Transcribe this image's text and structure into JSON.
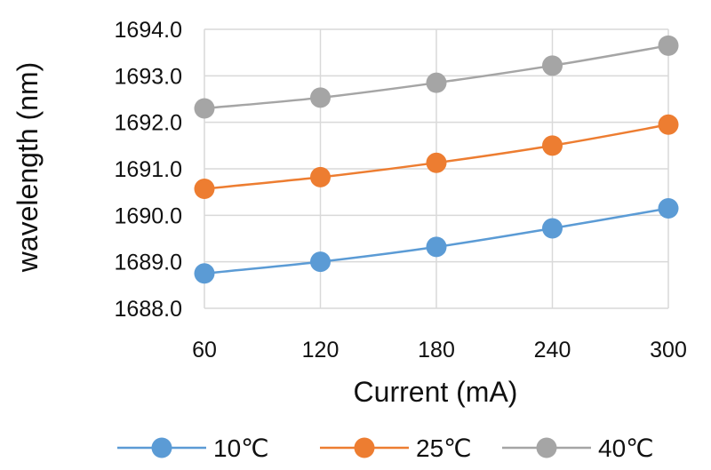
{
  "chart_data": {
    "type": "line",
    "title": "",
    "xlabel": "Current (mA)",
    "ylabel": "wavelength (nm)",
    "x": [
      60,
      120,
      180,
      240,
      300
    ],
    "x_tick_labels": [
      "60",
      "120",
      "180",
      "240",
      "300"
    ],
    "ylim": [
      1688.0,
      1694.0
    ],
    "y_tick_labels": [
      "1688.0",
      "1689.0",
      "1690.0",
      "1691.0",
      "1692.0",
      "1693.0",
      "1694.0"
    ],
    "grid": true,
    "legend_position": "bottom",
    "series": [
      {
        "name": "10℃",
        "color": "#5b9bd5",
        "values": [
          1688.75,
          1689.0,
          1689.32,
          1689.72,
          1690.15
        ]
      },
      {
        "name": "25℃",
        "color": "#ed7d31",
        "values": [
          1690.57,
          1690.82,
          1691.13,
          1691.5,
          1691.95
        ]
      },
      {
        "name": "40℃",
        "color": "#a5a5a5",
        "values": [
          1692.3,
          1692.53,
          1692.85,
          1693.22,
          1693.65
        ]
      }
    ]
  }
}
